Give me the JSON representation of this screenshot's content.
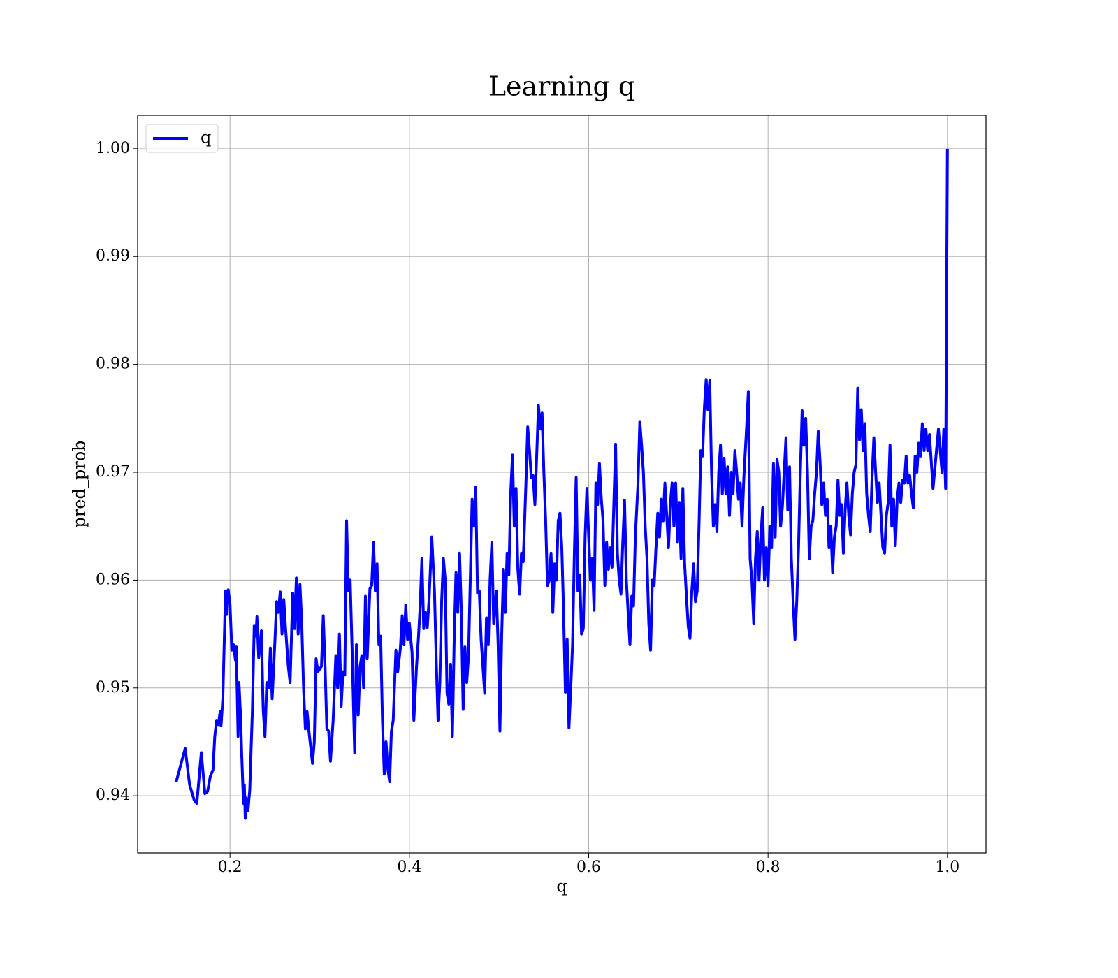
{
  "chart_data": {
    "type": "line",
    "title": "Learning q",
    "xlabel": "q",
    "ylabel": "pred_prob",
    "xlim": [
      0.097,
      1.043
    ],
    "ylim": [
      0.9347,
      1.0031
    ],
    "xticks": [
      0.2,
      0.4,
      0.6,
      0.8,
      {
        "value": 1,
        "label": "1.0"
      }
    ],
    "yticks": [
      0.94,
      0.95,
      0.96,
      0.97,
      0.98,
      0.99,
      {
        "value": 1,
        "label": "1.00"
      }
    ],
    "grid": true,
    "legend": "upper left",
    "x": [
      0.14,
      0.15,
      0.155,
      0.16,
      0.163,
      0.168,
      0.172,
      0.175,
      0.178,
      0.181,
      0.183,
      0.185,
      0.187,
      0.189,
      0.19,
      0.192,
      0.195,
      0.196,
      0.198,
      0.2,
      0.202,
      0.204,
      0.206,
      0.207,
      0.209,
      0.21,
      0.212,
      0.213,
      0.215,
      0.216,
      0.217,
      0.218,
      0.22,
      0.222,
      0.225,
      0.227,
      0.229,
      0.23,
      0.232,
      0.235,
      0.237,
      0.239,
      0.241,
      0.243,
      0.245,
      0.247,
      0.25,
      0.252,
      0.254,
      0.256,
      0.258,
      0.26,
      0.262,
      0.265,
      0.267,
      0.27,
      0.272,
      0.274,
      0.276,
      0.278,
      0.28,
      0.282,
      0.284,
      0.286,
      0.288,
      0.29,
      0.292,
      0.294,
      0.296,
      0.298,
      0.302,
      0.304,
      0.306,
      0.308,
      0.31,
      0.312,
      0.315,
      0.318,
      0.32,
      0.322,
      0.324,
      0.326,
      0.328,
      0.33,
      0.332,
      0.334,
      0.336,
      0.339,
      0.341,
      0.343,
      0.345,
      0.347,
      0.349,
      0.351,
      0.353,
      0.356,
      0.358,
      0.36,
      0.362,
      0.364,
      0.366,
      0.368,
      0.37,
      0.372,
      0.374,
      0.376,
      0.378,
      0.38,
      0.382,
      0.385,
      0.387,
      0.39,
      0.392,
      0.394,
      0.396,
      0.398,
      0.4,
      0.403,
      0.405,
      0.408,
      0.41,
      0.412,
      0.414,
      0.416,
      0.418,
      0.42,
      0.422,
      0.425,
      0.428,
      0.43,
      0.432,
      0.434,
      0.436,
      0.438,
      0.44,
      0.442,
      0.444,
      0.446,
      0.448,
      0.45,
      0.452,
      0.454,
      0.456,
      0.458,
      0.46,
      0.462,
      0.464,
      0.466,
      0.47,
      0.472,
      0.474,
      0.476,
      0.478,
      0.48,
      0.482,
      0.484,
      0.486,
      0.488,
      0.49,
      0.492,
      0.494,
      0.497,
      0.499,
      0.501,
      0.503,
      0.505,
      0.507,
      0.509,
      0.511,
      0.513,
      0.515,
      0.517,
      0.519,
      0.521,
      0.523,
      0.525,
      0.527,
      0.53,
      0.532,
      0.534,
      0.536,
      0.538,
      0.54,
      0.542,
      0.544,
      0.546,
      0.548,
      0.55,
      0.552,
      0.554,
      0.556,
      0.558,
      0.56,
      0.562,
      0.564,
      0.566,
      0.568,
      0.57,
      0.572,
      0.574,
      0.576,
      0.578,
      0.58,
      0.582,
      0.584,
      0.586,
      0.588,
      0.59,
      0.592,
      0.594,
      0.596,
      0.598,
      0.6,
      0.602,
      0.604,
      0.606,
      0.608,
      0.61,
      0.612,
      0.614,
      0.616,
      0.618,
      0.62,
      0.622,
      0.624,
      0.626,
      0.628,
      0.63,
      0.632,
      0.634,
      0.636,
      0.638,
      0.64,
      0.642,
      0.644,
      0.646,
      0.648,
      0.65,
      0.652,
      0.655,
      0.657,
      0.659,
      0.661,
      0.663,
      0.665,
      0.667,
      0.669,
      0.671,
      0.673,
      0.675,
      0.677,
      0.679,
      0.681,
      0.683,
      0.685,
      0.687,
      0.689,
      0.691,
      0.693,
      0.695,
      0.697,
      0.699,
      0.701,
      0.703,
      0.705,
      0.707,
      0.709,
      0.711,
      0.713,
      0.715,
      0.717,
      0.719,
      0.721,
      0.723,
      0.725,
      0.727,
      0.729,
      0.731,
      0.733,
      0.735,
      0.737,
      0.739,
      0.741,
      0.743,
      0.745,
      0.747,
      0.749,
      0.751,
      0.753,
      0.755,
      0.757,
      0.759,
      0.761,
      0.763,
      0.765,
      0.767,
      0.769,
      0.771,
      0.773,
      0.776,
      0.778,
      0.78,
      0.782,
      0.784,
      0.786,
      0.788,
      0.79,
      0.792,
      0.794,
      0.796,
      0.798,
      0.8,
      0.802,
      0.804,
      0.806,
      0.808,
      0.81,
      0.812,
      0.814,
      0.816,
      0.818,
      0.82,
      0.822,
      0.824,
      0.826,
      0.828,
      0.83,
      0.832,
      0.834,
      0.836,
      0.838,
      0.84,
      0.842,
      0.844,
      0.846,
      0.848,
      0.85,
      0.852,
      0.854,
      0.856,
      0.858,
      0.86,
      0.862,
      0.864,
      0.866,
      0.868,
      0.87,
      0.872,
      0.874,
      0.876,
      0.878,
      0.88,
      0.882,
      0.884,
      0.886,
      0.888,
      0.89,
      0.892,
      0.894,
      0.896,
      0.898,
      0.9,
      0.902,
      0.904,
      0.906,
      0.908,
      0.91,
      0.912,
      0.914,
      0.916,
      0.918,
      0.92,
      0.922,
      0.924,
      0.926,
      0.928,
      0.93,
      0.932,
      0.934,
      0.936,
      0.938,
      0.94,
      0.942,
      0.944,
      0.946,
      0.948,
      0.95,
      0.952,
      0.954,
      0.956,
      0.958,
      0.96,
      0.962,
      0.964,
      0.966,
      0.968,
      0.97,
      0.972,
      0.974,
      0.976,
      0.978,
      0.98,
      0.984,
      0.99,
      0.994,
      0.996,
      0.998,
      1.0
    ],
    "series": [
      {
        "name": "q",
        "color": "#0000ff",
        "values": [
          0.9413,
          0.9444,
          0.941,
          0.9396,
          0.9393,
          0.944,
          0.9402,
          0.9404,
          0.9418,
          0.9424,
          0.9455,
          0.947,
          0.9466,
          0.9478,
          0.9465,
          0.949,
          0.959,
          0.9568,
          0.9591,
          0.9578,
          0.9535,
          0.954,
          0.9526,
          0.9538,
          0.9455,
          0.9505,
          0.947,
          0.944,
          0.9393,
          0.941,
          0.9379,
          0.9398,
          0.9386,
          0.9405,
          0.948,
          0.9558,
          0.9548,
          0.9566,
          0.9528,
          0.9553,
          0.948,
          0.9455,
          0.9505,
          0.95,
          0.9537,
          0.949,
          0.9542,
          0.958,
          0.957,
          0.9589,
          0.955,
          0.9582,
          0.9555,
          0.952,
          0.9505,
          0.9588,
          0.9555,
          0.9602,
          0.955,
          0.9596,
          0.956,
          0.95,
          0.9462,
          0.9478,
          0.946,
          0.9445,
          0.943,
          0.945,
          0.9527,
          0.9515,
          0.952,
          0.9567,
          0.952,
          0.9462,
          0.946,
          0.9432,
          0.947,
          0.953,
          0.95,
          0.955,
          0.9483,
          0.9515,
          0.9512,
          0.9655,
          0.959,
          0.96,
          0.954,
          0.944,
          0.954,
          0.9475,
          0.952,
          0.953,
          0.95,
          0.9585,
          0.9527,
          0.9592,
          0.9595,
          0.9635,
          0.959,
          0.9615,
          0.954,
          0.9548,
          0.947,
          0.942,
          0.945,
          0.9425,
          0.9413,
          0.946,
          0.947,
          0.9535,
          0.9515,
          0.9537,
          0.9567,
          0.954,
          0.9577,
          0.9545,
          0.956,
          0.9533,
          0.947,
          0.952,
          0.9545,
          0.9575,
          0.962,
          0.9555,
          0.957,
          0.9556,
          0.9582,
          0.964,
          0.959,
          0.9525,
          0.947,
          0.9505,
          0.958,
          0.962,
          0.96,
          0.9495,
          0.9485,
          0.9522,
          0.9455,
          0.9545,
          0.9607,
          0.957,
          0.9625,
          0.957,
          0.948,
          0.9538,
          0.9505,
          0.953,
          0.9675,
          0.965,
          0.9686,
          0.9588,
          0.959,
          0.9545,
          0.952,
          0.9495,
          0.9565,
          0.954,
          0.96,
          0.9635,
          0.956,
          0.959,
          0.954,
          0.946,
          0.955,
          0.961,
          0.957,
          0.9625,
          0.9605,
          0.968,
          0.9716,
          0.965,
          0.9685,
          0.961,
          0.9587,
          0.9625,
          0.9617,
          0.969,
          0.9742,
          0.972,
          0.9695,
          0.9697,
          0.967,
          0.9715,
          0.9762,
          0.974,
          0.9755,
          0.97,
          0.9655,
          0.9595,
          0.96,
          0.9625,
          0.957,
          0.9615,
          0.96,
          0.9655,
          0.9662,
          0.963,
          0.957,
          0.9496,
          0.9545,
          0.9463,
          0.95,
          0.954,
          0.9625,
          0.9695,
          0.959,
          0.9605,
          0.955,
          0.9555,
          0.964,
          0.9685,
          0.964,
          0.96,
          0.962,
          0.9572,
          0.969,
          0.967,
          0.9708,
          0.9676,
          0.9655,
          0.9595,
          0.9635,
          0.961,
          0.963,
          0.9612,
          0.967,
          0.9726,
          0.9625,
          0.96,
          0.9587,
          0.9635,
          0.9674,
          0.96,
          0.957,
          0.954,
          0.9585,
          0.9576,
          0.964,
          0.969,
          0.9747,
          0.9725,
          0.97,
          0.965,
          0.962,
          0.956,
          0.9535,
          0.96,
          0.9595,
          0.963,
          0.9662,
          0.964,
          0.9675,
          0.9655,
          0.969,
          0.966,
          0.963,
          0.967,
          0.969,
          0.965,
          0.969,
          0.9635,
          0.9672,
          0.962,
          0.9685,
          0.9615,
          0.9585,
          0.9557,
          0.9546,
          0.959,
          0.9615,
          0.958,
          0.959,
          0.965,
          0.972,
          0.9715,
          0.976,
          0.9786,
          0.9758,
          0.9785,
          0.97,
          0.965,
          0.967,
          0.9645,
          0.97,
          0.9725,
          0.968,
          0.9713,
          0.968,
          0.9705,
          0.966,
          0.97,
          0.968,
          0.972,
          0.97,
          0.9675,
          0.969,
          0.965,
          0.9695,
          0.974,
          0.9775,
          0.962,
          0.96,
          0.956,
          0.962,
          0.9645,
          0.96,
          0.964,
          0.9667,
          0.96,
          0.963,
          0.9595,
          0.965,
          0.963,
          0.9708,
          0.964,
          0.9712,
          0.97,
          0.965,
          0.9668,
          0.97,
          0.9732,
          0.9665,
          0.9705,
          0.962,
          0.958,
          0.9545,
          0.958,
          0.963,
          0.97,
          0.9757,
          0.9725,
          0.975,
          0.97,
          0.962,
          0.965,
          0.9655,
          0.968,
          0.97,
          0.9738,
          0.971,
          0.967,
          0.969,
          0.966,
          0.9675,
          0.963,
          0.965,
          0.9607,
          0.964,
          0.965,
          0.9693,
          0.966,
          0.967,
          0.9625,
          0.9665,
          0.969,
          0.966,
          0.9642,
          0.968,
          0.97,
          0.9707,
          0.9778,
          0.973,
          0.9758,
          0.972,
          0.9745,
          0.968,
          0.966,
          0.9645,
          0.9695,
          0.9732,
          0.97,
          0.9672,
          0.969,
          0.966,
          0.963,
          0.9625,
          0.966,
          0.9672,
          0.9725,
          0.965,
          0.9675,
          0.9632,
          0.9675,
          0.969,
          0.9672,
          0.9693,
          0.969,
          0.9715,
          0.969,
          0.9697,
          0.968,
          0.9667,
          0.9715,
          0.97,
          0.9727,
          0.9715,
          0.9745,
          0.972,
          0.974,
          0.972,
          0.9735,
          0.9685,
          0.974,
          0.97,
          0.974,
          0.9685,
          1.0
        ]
      }
    ]
  }
}
